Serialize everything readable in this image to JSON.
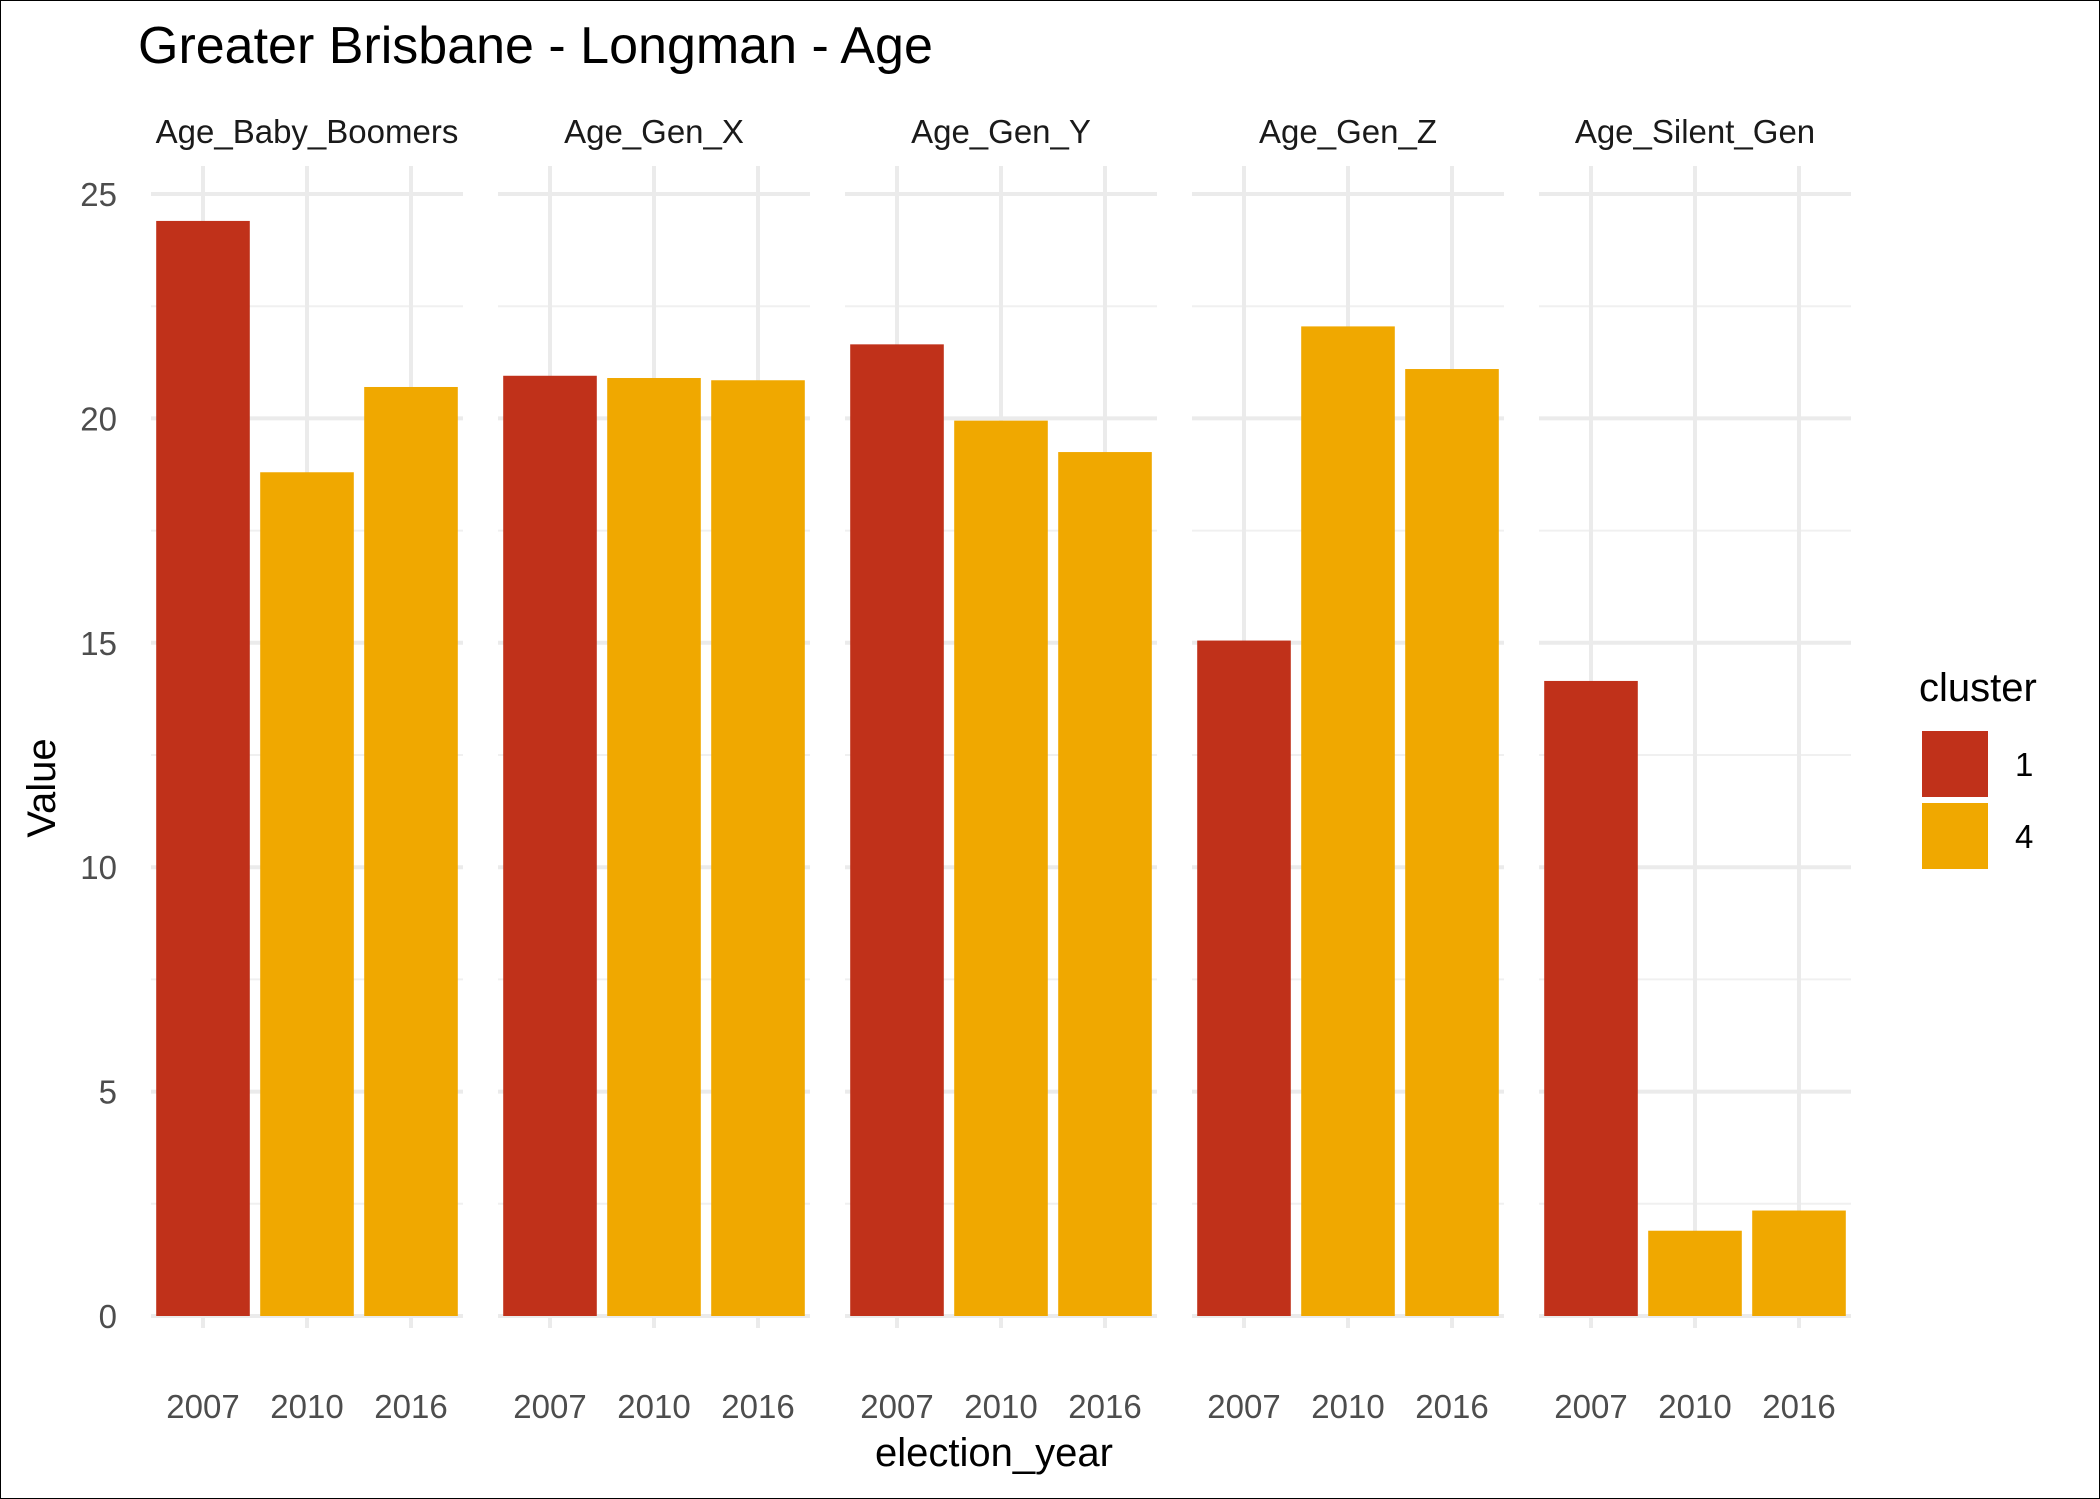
{
  "chart_data": {
    "type": "bar",
    "title": "Greater Brisbane - Longman - Age",
    "xlabel": "election_year",
    "ylabel": "Value",
    "ylim": [
      0,
      25
    ],
    "yticks": [
      0,
      5,
      10,
      15,
      20,
      25
    ],
    "grid": true,
    "facets": [
      "Age_Baby_Boomers",
      "Age_Gen_X",
      "Age_Gen_Y",
      "Age_Gen_Z",
      "Age_Silent_Gen"
    ],
    "categories": [
      "2007",
      "2010",
      "2016"
    ],
    "legend": {
      "title": "cluster",
      "position": "right",
      "entries": [
        {
          "label": "1",
          "color": "#C0311A"
        },
        {
          "label": "4",
          "color": "#F0A800"
        }
      ]
    },
    "series": [
      {
        "facet": "Age_Baby_Boomers",
        "values": [
          24.4,
          18.8,
          20.7
        ],
        "cluster": [
          "1",
          "4",
          "4"
        ]
      },
      {
        "facet": "Age_Gen_X",
        "values": [
          20.95,
          20.9,
          20.85
        ],
        "cluster": [
          "1",
          "4",
          "4"
        ]
      },
      {
        "facet": "Age_Gen_Y",
        "values": [
          21.65,
          19.95,
          19.25
        ],
        "cluster": [
          "1",
          "4",
          "4"
        ]
      },
      {
        "facet": "Age_Gen_Z",
        "values": [
          15.05,
          22.05,
          21.1
        ],
        "cluster": [
          "1",
          "4",
          "4"
        ]
      },
      {
        "facet": "Age_Silent_Gen",
        "values": [
          14.15,
          1.9,
          2.35
        ],
        "cluster": [
          "1",
          "4",
          "4"
        ]
      }
    ]
  }
}
